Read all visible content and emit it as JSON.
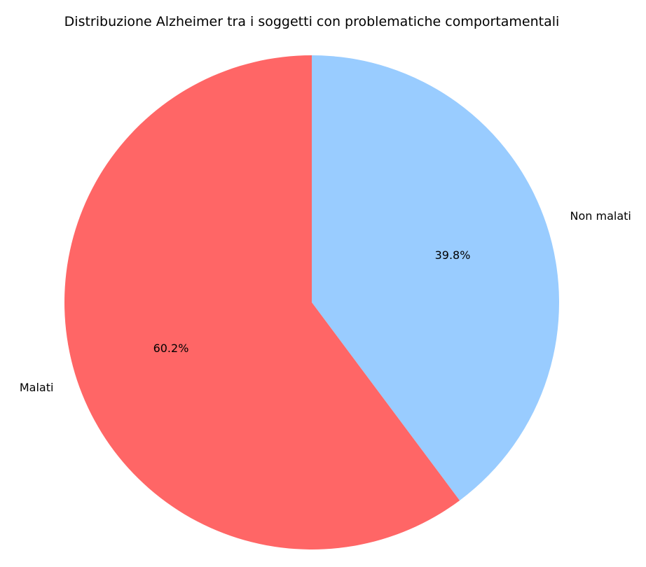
{
  "chart_data": {
    "type": "pie",
    "title": "Distribuzione Alzheimer tra i soggetti con problematiche comportamentali",
    "slices": [
      {
        "label": "Non malati",
        "value": 39.8,
        "pct_label": "39.8%",
        "color": "#99ccff"
      },
      {
        "label": "Malati",
        "value": 60.2,
        "pct_label": "60.2%",
        "color": "#ff6666"
      }
    ],
    "start_angle": "90 degrees (top)",
    "direction": "clockwise",
    "legend": "none"
  }
}
